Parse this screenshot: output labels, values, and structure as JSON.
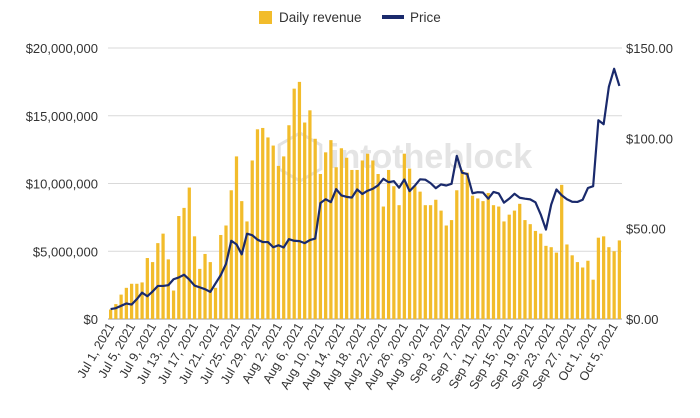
{
  "chart_data": {
    "type": "bar+line",
    "legend": {
      "position": "top",
      "items": [
        {
          "label": "Daily revenue",
          "kind": "bar",
          "color": "#F2BC2B"
        },
        {
          "label": "Price",
          "kind": "line",
          "color": "#1A2A6C"
        }
      ]
    },
    "watermark": "intotheblock",
    "y_left": {
      "min": 0,
      "max": 20000000,
      "ticks": [
        0,
        5000000,
        10000000,
        15000000,
        20000000
      ],
      "tick_labels": [
        "$0",
        "$5,000,000",
        "$10,000,000",
        "$15,000,000",
        "$20,000,000"
      ]
    },
    "y_right": {
      "min": 0,
      "max": 150,
      "ticks": [
        0,
        50,
        100,
        150
      ],
      "tick_labels": [
        "$0.00",
        "$50.00",
        "$100.00",
        "$150.00"
      ]
    },
    "x_tick_labels": [
      {
        "index": 0,
        "label": "Jul 1, 2021"
      },
      {
        "index": 4,
        "label": "Jul 5, 2021"
      },
      {
        "index": 8,
        "label": "Jul 9, 2021"
      },
      {
        "index": 12,
        "label": "Jul 13, 2021"
      },
      {
        "index": 16,
        "label": "Jul 17, 2021"
      },
      {
        "index": 20,
        "label": "Jul 21, 2021"
      },
      {
        "index": 24,
        "label": "Jul 25, 2021"
      },
      {
        "index": 28,
        "label": "Jul 29, 2021"
      },
      {
        "index": 32,
        "label": "Aug 2, 2021"
      },
      {
        "index": 36,
        "label": "Aug 6, 2021"
      },
      {
        "index": 40,
        "label": "Aug 10, 2021"
      },
      {
        "index": 44,
        "label": "Aug 14, 2021"
      },
      {
        "index": 48,
        "label": "Aug 18, 2021"
      },
      {
        "index": 52,
        "label": "Aug 22, 2021"
      },
      {
        "index": 56,
        "label": "Aug 26, 2021"
      },
      {
        "index": 60,
        "label": "Aug 30, 2021"
      },
      {
        "index": 64,
        "label": "Sep 3, 2021"
      },
      {
        "index": 68,
        "label": "Sep 7, 2021"
      },
      {
        "index": 72,
        "label": "Sep 11, 2021"
      },
      {
        "index": 76,
        "label": "Sep 15, 2021"
      },
      {
        "index": 80,
        "label": "Sep 19, 2021"
      },
      {
        "index": 84,
        "label": "Sep 23, 2021"
      },
      {
        "index": 88,
        "label": "Sep 27, 2021"
      },
      {
        "index": 92,
        "label": "Oct 1, 2021"
      },
      {
        "index": 96,
        "label": "Oct 5, 2021"
      }
    ],
    "revenue": [
      700000,
      1100000,
      1800000,
      2300000,
      2600000,
      2600000,
      2700000,
      4500000,
      4200000,
      5600000,
      6300000,
      4400000,
      2100000,
      7600000,
      8200000,
      9700000,
      6100000,
      3700000,
      4800000,
      4200000,
      2300000,
      6200000,
      6900000,
      9500000,
      12000000,
      8700000,
      7200000,
      11700000,
      14000000,
      14100000,
      13400000,
      12800000,
      11300000,
      12000000,
      14300000,
      17000000,
      17500000,
      14500000,
      15400000,
      13300000,
      10700000,
      12300000,
      13200000,
      11200000,
      12600000,
      11900000,
      11000000,
      11000000,
      11700000,
      12200000,
      11700000,
      10700000,
      8300000,
      11000000,
      9800000,
      8400000,
      12200000,
      11100000,
      9800000,
      9400000,
      8400000,
      8400000,
      8800000,
      8000000,
      6900000,
      7300000,
      9500000,
      11000000,
      10800000,
      9100000,
      8900000,
      8700000,
      9300000,
      8400000,
      8300000,
      7200000,
      7700000,
      8000000,
      8500000,
      7300000,
      7000000,
      6500000,
      6300000,
      5400000,
      5300000,
      4900000,
      9900000,
      5500000,
      4700000,
      4200000,
      3800000,
      4300000,
      2900000,
      6000000,
      6100000,
      5300000,
      5000000,
      5800000
    ],
    "price": [
      5.5,
      6,
      7.3,
      8.6,
      8,
      11,
      14.6,
      12.6,
      15.2,
      18.3,
      18.3,
      18.7,
      22,
      23,
      24.5,
      21.8,
      18.5,
      17.5,
      16.5,
      15,
      19.7,
      24.3,
      30.5,
      43.3,
      41.3,
      35.8,
      47.2,
      46.4,
      43.9,
      42.6,
      42.6,
      39.7,
      40.8,
      39.6,
      44.2,
      43.3,
      43.1,
      42,
      43.7,
      44.5,
      64.2,
      66.3,
      64.7,
      71.9,
      68.4,
      67.6,
      67.2,
      71.7,
      69.2,
      71,
      72.1,
      74,
      77.6,
      75.7,
      76.3,
      72.7,
      77.2,
      70.8,
      73.8,
      77.3,
      77.1,
      75.2,
      72.4,
      74.5,
      73.9,
      74.8,
      90.3,
      81,
      80.2,
      69.6,
      70.2,
      70,
      66.6,
      70.3,
      69.5,
      64.4,
      66.6,
      69.3,
      67.1,
      66.6,
      66.2,
      64.6,
      57.9,
      49.5,
      63.3,
      71.7,
      68.5,
      66.3,
      64.9,
      64.8,
      66,
      72.5,
      73.5,
      110,
      107.8,
      128.6,
      138.5,
      129
    ]
  }
}
